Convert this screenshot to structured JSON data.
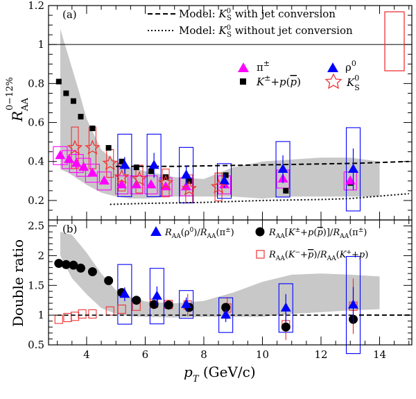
{
  "colors": {
    "pion": "#ff00ff",
    "rho": "#0000ff",
    "kaon_proton": "#000000",
    "ks": "#ee3333",
    "band": "#c8c8c8",
    "pion_box": "#ff00ff",
    "rho_box": "#0000ff",
    "ks_box": "#ee3333",
    "ratio_red": "#ee3333"
  },
  "axes": {
    "xlabel_main": "p",
    "xlabel_sub": "T",
    "xlabel_unit": " (GeV/c)",
    "xtick_labels": [
      "4",
      "6",
      "8",
      "10",
      "12",
      "14"
    ],
    "top_ylabel_main": "R",
    "top_ylabel_sub": "AA",
    "top_ylabel_sup": "0−12%",
    "top_ytick_labels": [
      "0.2",
      "0.4",
      "0.6",
      "0.8",
      "1",
      "1.2"
    ],
    "bottom_ylabel": "Double ratio",
    "bottom_ytick_labels": [
      "0.5",
      "1",
      "1.5",
      "2",
      "2.5"
    ]
  },
  "top_panel": {
    "tag": "(a)",
    "legend": {
      "model_jet": "Model: K_S^0 with jet conversion",
      "model_jet_pre": "Model: ",
      "model_jet_K": "K",
      "model_jet_sub": "S",
      "model_jet_sup": "0",
      "model_jet_post": " with jet conversion",
      "model_nojet_pre": "Model: ",
      "model_nojet_K": "K",
      "model_nojet_sub": "S",
      "model_nojet_sup": "0",
      "model_nojet_post": " without jet conversion",
      "pion": "π±",
      "rho": "ρ0",
      "kp_label": "K±+p(p)",
      "ks_label": "K_S^0"
    }
  },
  "bottom_panel": {
    "tag": "(b)",
    "legend": {
      "rho_ratio": "R_AA(ρ0)/R_AA(π±)",
      "kp_ratio": "R_AA[K±+p(p)]/R_AA(π±)",
      "charge_ratio": "R_AA(K−+p)/R_AA(K++p)"
    }
  },
  "chart_data": [
    {
      "type": "scatter",
      "panel": "top",
      "xlim": [
        2.7,
        15.1
      ],
      "ylim": [
        0.1,
        1.2
      ],
      "reference_line_y": 1.0,
      "series": [
        {
          "name": "π±",
          "marker": "triangle",
          "x": [
            3.1,
            3.4,
            3.65,
            3.9,
            4.2,
            4.6,
            5.2,
            5.7,
            6.2,
            6.7,
            7.4,
            8.7,
            10.7,
            13.0
          ],
          "y": [
            0.43,
            0.41,
            0.39,
            0.37,
            0.34,
            0.3,
            0.28,
            0.28,
            0.28,
            0.27,
            0.27,
            0.28,
            0.31,
            0.3
          ]
        },
        {
          "name": "ρ0",
          "marker": "triangle",
          "x": [
            5.3,
            6.3,
            7.4,
            8.7,
            10.7,
            13.1
          ],
          "y": [
            0.38,
            0.38,
            0.33,
            0.3,
            0.36,
            0.36
          ]
        },
        {
          "name": "K±+p(p)",
          "marker": "square",
          "x": [
            3.05,
            3.3,
            3.55,
            3.8,
            4.2,
            4.75,
            5.2,
            5.7,
            6.2,
            6.7,
            7.5,
            8.75,
            10.8,
            13.0
          ],
          "y": [
            0.81,
            0.75,
            0.71,
            0.63,
            0.57,
            0.47,
            0.4,
            0.37,
            0.35,
            0.32,
            0.3,
            0.33,
            0.25,
            0.29
          ]
        },
        {
          "name": "K_S^0",
          "marker": "star",
          "x": [
            3.6,
            4.2,
            4.8,
            5.2,
            5.8,
            6.7,
            7.5,
            8.5
          ],
          "y": [
            0.47,
            0.47,
            0.39,
            0.32,
            0.31,
            0.29,
            0.26,
            0.27
          ]
        }
      ],
      "band": {
        "x": [
          3.1,
          3.4,
          3.7,
          4.0,
          4.5,
          5.0,
          5.5,
          6.0,
          7.0,
          8.0,
          9.0,
          10.0,
          11.0,
          12.0,
          13.0,
          14.0
        ],
        "lower": [
          0.36,
          0.34,
          0.31,
          0.28,
          0.24,
          0.22,
          0.21,
          0.21,
          0.22,
          0.22,
          0.22,
          0.21,
          0.22,
          0.22,
          0.22,
          0.22
        ],
        "upper": [
          1.08,
          0.93,
          0.78,
          0.62,
          0.46,
          0.4,
          0.37,
          0.35,
          0.32,
          0.31,
          0.37,
          0.4,
          0.41,
          0.42,
          0.42,
          0.4
        ]
      },
      "model_with_jet": {
        "x": [
          5.0,
          7.0,
          9.0,
          11.0,
          13.0,
          15.0
        ],
        "y": [
          0.375,
          0.375,
          0.38,
          0.385,
          0.39,
          0.4
        ]
      },
      "model_without_jet": {
        "x": [
          4.8,
          6.0,
          8.0,
          10.0,
          12.0,
          13.0,
          15.0
        ],
        "y": [
          0.18,
          0.185,
          0.19,
          0.2,
          0.205,
          0.21,
          0.235
        ]
      }
    },
    {
      "type": "scatter",
      "panel": "bottom",
      "xlim": [
        2.7,
        15.1
      ],
      "ylim": [
        0.5,
        2.6
      ],
      "reference_line_y": 1.0,
      "series": [
        {
          "name": "R_AA(ρ0)/R_AA(π±)",
          "marker": "triangle",
          "x": [
            5.3,
            6.4,
            7.4,
            8.75,
            10.8,
            13.1
          ],
          "y": [
            1.35,
            1.32,
            1.18,
            1.0,
            1.12,
            1.17
          ]
        },
        {
          "name": "R_AA[K±+p(p)]/R_AA(π±)",
          "marker": "circle",
          "x": [
            3.05,
            3.3,
            3.55,
            3.8,
            4.2,
            4.75,
            5.2,
            5.7,
            6.3,
            6.8,
            7.5,
            8.75,
            10.8,
            13.1
          ],
          "y": [
            1.87,
            1.85,
            1.84,
            1.79,
            1.73,
            1.58,
            1.38,
            1.25,
            1.18,
            1.17,
            1.13,
            1.13,
            0.8,
            0.93
          ]
        },
        {
          "name": "R_AA(K−+p)/R_AA(K++p)",
          "marker": "open-square",
          "x": [
            3.05,
            3.35,
            3.6,
            3.85,
            4.2,
            4.8,
            5.2,
            5.7,
            6.3,
            6.8,
            7.45,
            8.8,
            10.8,
            13.1
          ],
          "y": [
            0.93,
            0.96,
            0.98,
            1.02,
            1.02,
            1.07,
            1.1,
            1.15,
            1.2,
            1.18,
            1.17,
            1.12,
            0.84,
            1.15
          ]
        }
      ],
      "band": {
        "x": [
          3.1,
          3.5,
          4.0,
          4.5,
          5.0,
          5.5,
          6.0,
          7.0,
          8.0,
          9.0,
          10.0,
          11.0,
          12.0,
          13.0,
          14.0
        ],
        "lower": [
          2.0,
          1.62,
          1.35,
          1.12,
          1.02,
          0.98,
          0.97,
          0.96,
          0.97,
          0.97,
          0.97,
          1.02,
          1.05,
          1.08,
          1.1
        ],
        "upper": [
          2.4,
          2.35,
          2.05,
          1.7,
          1.42,
          1.3,
          1.23,
          1.2,
          1.24,
          1.38,
          1.56,
          1.68,
          1.7,
          1.68,
          1.65
        ]
      }
    }
  ]
}
